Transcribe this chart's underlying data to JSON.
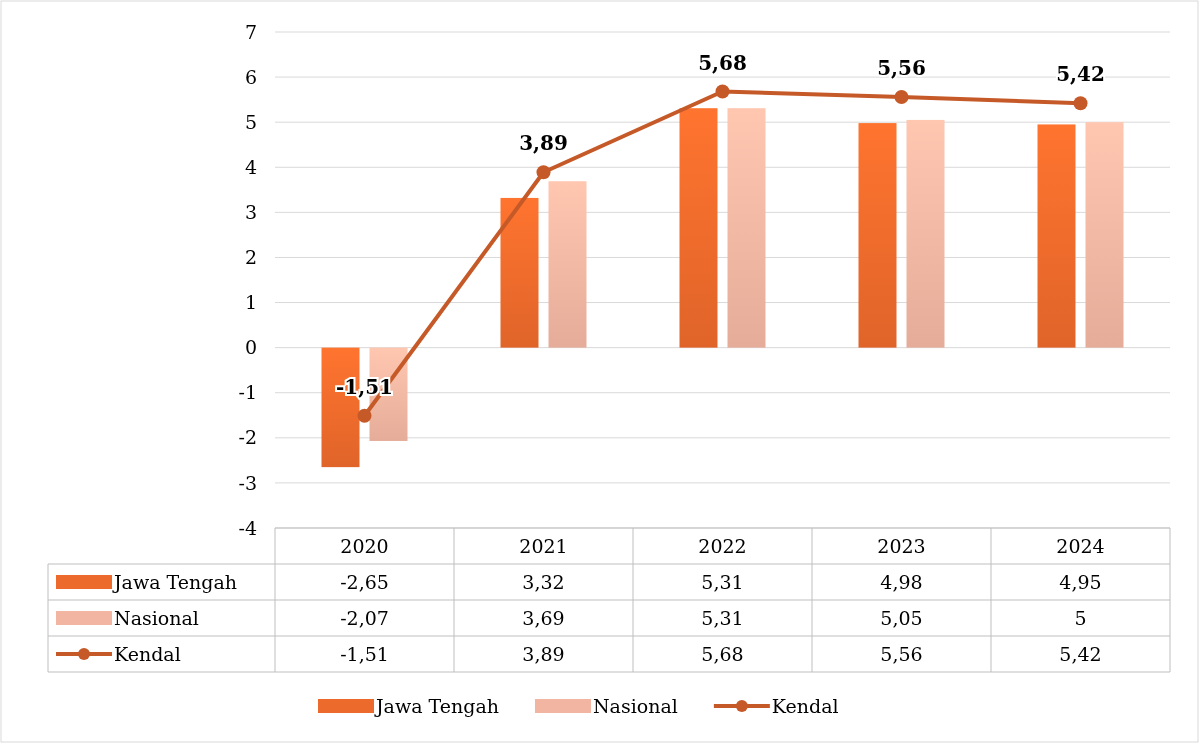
{
  "chart_data": {
    "type": "bar",
    "categories": [
      "2020",
      "2021",
      "2022",
      "2023",
      "2024"
    ],
    "series": [
      {
        "name": "Jawa Tengah",
        "color": "#ec6a2b",
        "values": [
          -2.65,
          3.32,
          5.31,
          4.98,
          4.95
        ],
        "value_labels": [
          "-2,65",
          "3,32",
          "5,31",
          "4,98",
          "4,95"
        ]
      },
      {
        "name": "Nasional",
        "color": "#f2b5a1",
        "values": [
          -2.07,
          3.69,
          5.31,
          5.05,
          5
        ],
        "value_labels": [
          "-2,07",
          "3,69",
          "5,31",
          "5,05",
          "5"
        ]
      },
      {
        "name": "Kendal",
        "type": "line",
        "color": "#c55a28",
        "values": [
          -1.51,
          3.89,
          5.68,
          5.56,
          5.42
        ],
        "value_labels": [
          "-1,51",
          "3,89",
          "5,68",
          "5,56",
          "5,42"
        ]
      }
    ],
    "ylim": [
      -4,
      7
    ],
    "yticks": [
      -4,
      -3,
      -2,
      -1,
      0,
      1,
      2,
      3,
      4,
      5,
      6,
      7
    ],
    "grid": "y",
    "legend": "bottom",
    "marker": "circle"
  }
}
